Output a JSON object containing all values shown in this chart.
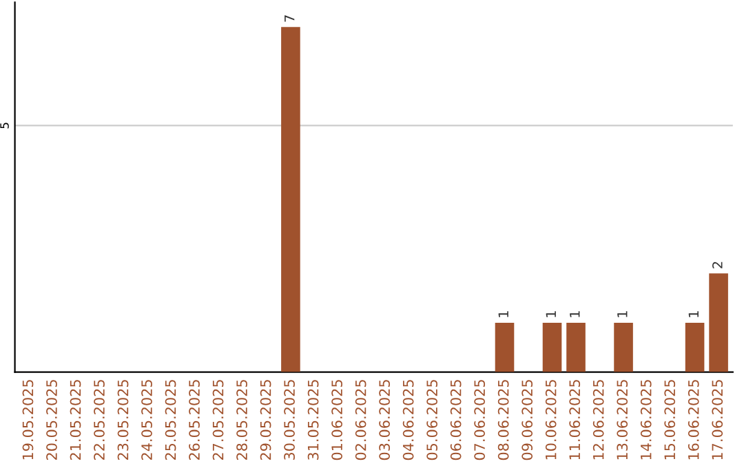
{
  "chart_data": {
    "type": "bar",
    "categories": [
      "19.05.2025",
      "20.05.2025",
      "21.05.2025",
      "22.05.2025",
      "23.05.2025",
      "24.05.2025",
      "25.05.2025",
      "26.05.2025",
      "27.05.2025",
      "28.05.2025",
      "29.05.2025",
      "30.05.2025",
      "31.05.2025",
      "01.06.2025",
      "02.06.2025",
      "03.06.2025",
      "04.06.2025",
      "05.06.2025",
      "06.06.2025",
      "07.06.2025",
      "08.06.2025",
      "09.06.2025",
      "10.06.2025",
      "11.06.2025",
      "12.06.2025",
      "13.06.2025",
      "14.06.2025",
      "15.06.2025",
      "16.06.2025",
      "17.06.2025"
    ],
    "values": [
      0,
      0,
      0,
      0,
      0,
      0,
      0,
      0,
      0,
      0,
      0,
      7,
      0,
      0,
      0,
      0,
      0,
      0,
      0,
      0,
      1,
      0,
      1,
      1,
      0,
      1,
      0,
      0,
      1,
      2
    ],
    "value_labels": [
      null,
      null,
      null,
      null,
      null,
      null,
      null,
      null,
      null,
      null,
      null,
      "7",
      null,
      null,
      null,
      null,
      null,
      null,
      null,
      null,
      "1",
      null,
      "1",
      "1",
      null,
      "1",
      null,
      null,
      "1",
      "2"
    ],
    "color": "#a0522d",
    "ylim": [
      0,
      7.5
    ],
    "yticks": [
      5
    ],
    "grid": "y"
  }
}
